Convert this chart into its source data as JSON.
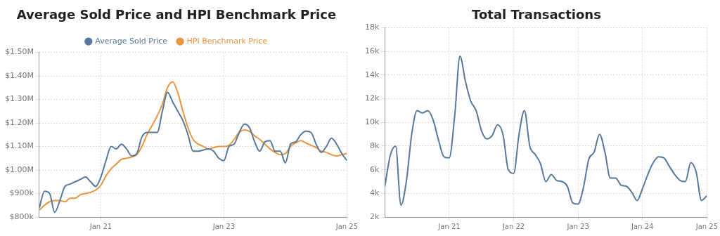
{
  "chart_data": [
    {
      "type": "line",
      "title": "Average Sold Price and HPI Benchmark Price",
      "legend": "top",
      "grid": true,
      "marker": "none",
      "x": [
        "2020-01",
        "2020-02",
        "2020-03",
        "2020-04",
        "2020-05",
        "2020-06",
        "2020-07",
        "2020-08",
        "2020-09",
        "2020-10",
        "2020-11",
        "2020-12",
        "2021-01",
        "2021-02",
        "2021-03",
        "2021-04",
        "2021-05",
        "2021-06",
        "2021-07",
        "2021-08",
        "2021-09",
        "2021-10",
        "2021-11",
        "2021-12",
        "2022-01",
        "2022-02",
        "2022-03",
        "2022-04",
        "2022-05",
        "2022-06",
        "2022-07",
        "2022-08",
        "2022-09",
        "2022-10",
        "2022-11",
        "2022-12",
        "2023-01",
        "2023-02",
        "2023-03",
        "2023-04",
        "2023-05",
        "2023-06",
        "2023-07",
        "2023-08",
        "2023-09",
        "2023-10",
        "2023-11",
        "2023-12",
        "2024-01",
        "2024-02",
        "2024-03",
        "2024-04",
        "2024-05",
        "2024-06",
        "2024-07",
        "2024-08",
        "2024-09",
        "2024-10",
        "2024-11",
        "2024-12",
        "2025-01"
      ],
      "xlim": [
        "2020-01",
        "2025-01"
      ],
      "xticks": [
        {
          "value": "2021-01",
          "label": "Jan 21"
        },
        {
          "value": "2023-01",
          "label": "Jan 23"
        },
        {
          "value": "2025-01",
          "label": "Jan 25"
        }
      ],
      "ylim": [
        800000,
        1500000
      ],
      "yticks": [
        {
          "value": 800000,
          "label": "$800k"
        },
        {
          "value": 900000,
          "label": "$900k"
        },
        {
          "value": 1000000,
          "label": "$1.00M"
        },
        {
          "value": 1100000,
          "label": "$1.10M"
        },
        {
          "value": 1200000,
          "label": "$1.20M"
        },
        {
          "value": 1300000,
          "label": "$1.30M"
        },
        {
          "value": 1400000,
          "label": "$1.40M"
        },
        {
          "value": 1500000,
          "label": "$1.50M"
        }
      ],
      "series": [
        {
          "name": "Average Sold Price",
          "color": "#55799e",
          "values": [
            840000,
            910000,
            900000,
            820000,
            870000,
            930000,
            940000,
            950000,
            960000,
            970000,
            950000,
            930000,
            970000,
            1040000,
            1100000,
            1090000,
            1110000,
            1090000,
            1060000,
            1070000,
            1140000,
            1160000,
            1160000,
            1160000,
            1250000,
            1330000,
            1290000,
            1250000,
            1210000,
            1150000,
            1080000,
            1080000,
            1085000,
            1090000,
            1080000,
            1050000,
            1040000,
            1100000,
            1110000,
            1160000,
            1195000,
            1180000,
            1120000,
            1080000,
            1120000,
            1125000,
            1080000,
            1080000,
            1030000,
            1110000,
            1120000,
            1150000,
            1165000,
            1160000,
            1110000,
            1075000,
            1100000,
            1135000,
            1110000,
            1070000,
            1040000
          ]
        },
        {
          "name": "HPI Benchmark Price",
          "color": "#e9943e",
          "values": [
            830000,
            850000,
            865000,
            870000,
            870000,
            865000,
            880000,
            880000,
            895000,
            900000,
            905000,
            915000,
            935000,
            975000,
            1005000,
            1025000,
            1045000,
            1050000,
            1055000,
            1065000,
            1100000,
            1150000,
            1190000,
            1230000,
            1280000,
            1350000,
            1375000,
            1330000,
            1250000,
            1180000,
            1130000,
            1110000,
            1100000,
            1090000,
            1095000,
            1100000,
            1100000,
            1105000,
            1130000,
            1160000,
            1170000,
            1165000,
            1145000,
            1130000,
            1110000,
            1090000,
            1075000,
            1065000,
            1070000,
            1100000,
            1115000,
            1125000,
            1115000,
            1105000,
            1095000,
            1080000,
            1075000,
            1065000,
            1060000,
            1065000,
            1070000
          ]
        }
      ]
    },
    {
      "type": "line",
      "title": "Total Transactions",
      "grid": true,
      "marker": "none",
      "x": [
        "2020-01",
        "2020-02",
        "2020-03",
        "2020-04",
        "2020-05",
        "2020-06",
        "2020-07",
        "2020-08",
        "2020-09",
        "2020-10",
        "2020-11",
        "2020-12",
        "2021-01",
        "2021-02",
        "2021-03",
        "2021-04",
        "2021-05",
        "2021-06",
        "2021-07",
        "2021-08",
        "2021-09",
        "2021-10",
        "2021-11",
        "2021-12",
        "2022-01",
        "2022-02",
        "2022-03",
        "2022-04",
        "2022-05",
        "2022-06",
        "2022-07",
        "2022-08",
        "2022-09",
        "2022-10",
        "2022-11",
        "2022-12",
        "2023-01",
        "2023-02",
        "2023-03",
        "2023-04",
        "2023-05",
        "2023-06",
        "2023-07",
        "2023-08",
        "2023-09",
        "2023-10",
        "2023-11",
        "2023-12",
        "2024-01",
        "2024-02",
        "2024-03",
        "2024-04",
        "2024-05",
        "2024-06",
        "2024-07",
        "2024-08",
        "2024-09",
        "2024-10",
        "2024-11",
        "2024-12",
        "2025-01"
      ],
      "xlim": [
        "2020-01",
        "2025-01"
      ],
      "xticks": [
        {
          "value": "2021-01",
          "label": "Jan 21"
        },
        {
          "value": "2022-01",
          "label": "Jan 22"
        },
        {
          "value": "2023-01",
          "label": "Jan 23"
        },
        {
          "value": "2024-01",
          "label": "Jan 24"
        },
        {
          "value": "2025-01",
          "label": "Jan 25"
        }
      ],
      "ylim": [
        2000,
        18000
      ],
      "yticks": [
        {
          "value": 2000,
          "label": "2k"
        },
        {
          "value": 4000,
          "label": "4k"
        },
        {
          "value": 6000,
          "label": "6k"
        },
        {
          "value": 8000,
          "label": "8k"
        },
        {
          "value": 10000,
          "label": "10k"
        },
        {
          "value": 12000,
          "label": "12k"
        },
        {
          "value": 14000,
          "label": "14k"
        },
        {
          "value": 16000,
          "label": "16k"
        },
        {
          "value": 18000,
          "label": "18k"
        }
      ],
      "series": [
        {
          "color": "#55799e",
          "values": [
            4600,
            7200,
            8000,
            3000,
            5000,
            9000,
            11000,
            10800,
            11000,
            10200,
            8500,
            7100,
            7000,
            10500,
            15600,
            13500,
            11800,
            11000,
            9300,
            8600,
            8900,
            9800,
            9000,
            6000,
            5700,
            9000,
            11000,
            8000,
            7300,
            6500,
            5000,
            5600,
            5100,
            5000,
            4600,
            3200,
            3100,
            4500,
            6900,
            7500,
            9000,
            7500,
            5300,
            5300,
            4700,
            4600,
            4100,
            3400,
            4400,
            5600,
            6600,
            7100,
            7000,
            6300,
            5600,
            5100,
            5000,
            6600,
            5800,
            3400,
            3800
          ]
        }
      ]
    }
  ]
}
